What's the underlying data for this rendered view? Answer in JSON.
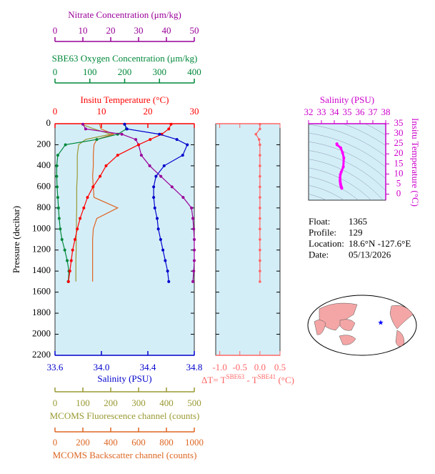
{
  "chart_data": [
    {
      "type": "profile",
      "ylabel": "Pressure (decibar)",
      "ylim": [
        0,
        2200
      ],
      "yticks": [
        0,
        200,
        400,
        600,
        800,
        1000,
        1200,
        1400,
        1600,
        1800,
        2000,
        2200
      ],
      "y_inverted": true,
      "background": "#d4eef8",
      "x_axes": [
        {
          "label": "Nitrate Concentration (μm/kg)",
          "color": "#990099",
          "xlim": [
            0,
            50
          ],
          "xticks": [
            0,
            10,
            20,
            30,
            40,
            50
          ]
        },
        {
          "label": "SBE63 Oxygen Concentration (μm/kg)",
          "color": "#00883a",
          "xlim": [
            0,
            400
          ],
          "xticks": [
            0,
            100,
            200,
            300,
            400
          ]
        },
        {
          "label": "Insitu Temperature (°C)",
          "color": "#ff0000",
          "xlim": [
            0,
            30
          ],
          "xticks": [
            0,
            10,
            20,
            30
          ]
        },
        {
          "label": "Salinity (PSU)",
          "color": "#0000cc",
          "xlim": [
            33.6,
            34.8
          ],
          "xticks": [
            33.6,
            {
              "value": 34,
              "label": "34.0"
            },
            34.4,
            34.8
          ]
        },
        {
          "label": "MCOMS Fluorescence channel (counts)",
          "color": "#999933",
          "xlim": [
            0,
            500
          ],
          "xticks": [
            0,
            100,
            200,
            300,
            400,
            500
          ]
        },
        {
          "label": "MCOMS Backscatter channel (counts)",
          "color": "#dd6622",
          "xlim": [
            0,
            1000
          ],
          "xticks": [
            0,
            200,
            400,
            600,
            800,
            1000
          ]
        }
      ],
      "series": [
        {
          "axis": 4,
          "markers": false,
          "pressure": [
            5,
            50,
            100,
            150,
            200,
            300,
            400,
            500,
            600,
            700,
            800,
            900,
            1000,
            1100,
            1200,
            1300,
            1400,
            1500
          ],
          "values": [
            95,
            140,
            200,
            110,
            85,
            80,
            80,
            80,
            78,
            78,
            78,
            77,
            77,
            76,
            76,
            75,
            75,
            75
          ]
        },
        {
          "axis": 5,
          "markers": false,
          "pressure": [
            5,
            50,
            100,
            150,
            200,
            300,
            400,
            500,
            600,
            700,
            800,
            900,
            1000,
            1100,
            1200,
            1300,
            1400,
            1500
          ],
          "values": [
            320,
            330,
            420,
            300,
            280,
            275,
            275,
            270,
            275,
            280,
            450,
            300,
            275,
            270,
            270,
            270,
            270,
            270
          ]
        },
        {
          "axis": 1,
          "markers": true,
          "pressure": [
            5,
            50,
            100,
            150,
            200,
            300,
            400,
            500,
            600,
            700,
            800,
            900,
            1000,
            1100,
            1200,
            1300,
            1400,
            1500
          ],
          "values": [
            200,
            205,
            180,
            120,
            30,
            8,
            5,
            5,
            6,
            8,
            10,
            12,
            15,
            20,
            28,
            35,
            40,
            38
          ]
        },
        {
          "axis": 0,
          "markers": true,
          "pressure": [
            5,
            50,
            100,
            150,
            200,
            300,
            400,
            500,
            600,
            700,
            800,
            900,
            1000,
            1100,
            1200,
            1300,
            1400,
            1500
          ],
          "values": [
            10,
            11,
            24,
            29,
            30,
            31,
            34,
            38,
            42,
            46,
            49,
            49.5,
            49.8,
            50,
            50,
            50,
            49.8,
            49.5
          ]
        },
        {
          "axis": 2,
          "markers": true,
          "pressure": [
            5,
            50,
            100,
            150,
            200,
            300,
            400,
            500,
            600,
            700,
            800,
            900,
            1000,
            1100,
            1200,
            1300,
            1400,
            1500
          ],
          "values": [
            25,
            24.5,
            23,
            20.5,
            18,
            13.5,
            11,
            9.7,
            8.2,
            7,
            6.2,
            5.4,
            4.8,
            4.3,
            3.8,
            3.5,
            3.2,
            2.9
          ]
        },
        {
          "axis": 3,
          "markers": true,
          "pressure": [
            5,
            50,
            100,
            150,
            200,
            300,
            400,
            500,
            600,
            700,
            800,
            900,
            1000,
            1100,
            1200,
            1300,
            1400,
            1500
          ],
          "values": [
            34.2,
            34.22,
            34.5,
            34.65,
            34.74,
            34.7,
            34.54,
            34.47,
            34.45,
            34.45,
            34.46,
            34.48,
            34.49,
            34.51,
            34.53,
            34.55,
            34.57,
            34.58
          ]
        }
      ]
    },
    {
      "type": "delta-profile",
      "xlabel_parts": [
        "ΔT= T",
        "SBE63",
        " - T",
        "SBE41",
        " (°C)"
      ],
      "color": "#ff6666",
      "background": "#d4eef8",
      "xlim": [
        -1.1,
        0.5
      ],
      "xticks": [
        {
          "value": -1,
          "label": "-1.0"
        },
        -0.5,
        {
          "value": 0,
          "label": "0.0"
        },
        0.5
      ],
      "ylim": [
        0,
        2200
      ],
      "yticks": [
        0,
        200,
        400,
        600,
        800,
        1000,
        1200,
        1400,
        1600,
        1800,
        2000,
        2200
      ],
      "pressure": [
        5,
        50,
        100,
        150,
        200,
        300,
        400,
        500,
        600,
        700,
        800,
        900,
        1000,
        1100,
        1200,
        1300,
        1400,
        1500
      ],
      "values": [
        0,
        0,
        -0.1,
        -0.02,
        0,
        0,
        0,
        0,
        0,
        0,
        0,
        0,
        0,
        0,
        0,
        0,
        0,
        0
      ]
    },
    {
      "type": "ts",
      "title": "Salinity (PSU)",
      "ylabel": "Insitu Temperature (°C)",
      "color": "#ff00ff",
      "axis_color": "#cc00cc",
      "background": "#d4eef8",
      "xlim": [
        32,
        38
      ],
      "xticks": [
        32,
        33,
        34,
        35,
        36,
        37,
        38
      ],
      "ylim": [
        -3,
        35
      ],
      "yticks": [
        0,
        5,
        10,
        15,
        20,
        25,
        30,
        35
      ],
      "salinity": [
        34.2,
        34.22,
        34.5,
        34.65,
        34.74,
        34.7,
        34.54,
        34.47,
        34.45,
        34.45,
        34.46,
        34.48,
        34.49,
        34.51,
        34.53,
        34.55,
        34.57,
        34.58
      ],
      "temperature": [
        25,
        24.5,
        23,
        20.5,
        18,
        13.5,
        11,
        9.7,
        8.2,
        7,
        6.2,
        5.4,
        4.8,
        4.3,
        3.8,
        3.5,
        3.2,
        2.9
      ]
    }
  ],
  "info": [
    {
      "label": "Float:",
      "value": "1365"
    },
    {
      "label": "Profile:",
      "value": "129"
    },
    {
      "label": "Location:",
      "value": "18.6°N  -127.6°E"
    },
    {
      "label": "Date:",
      "value": "05/13/2026"
    }
  ]
}
